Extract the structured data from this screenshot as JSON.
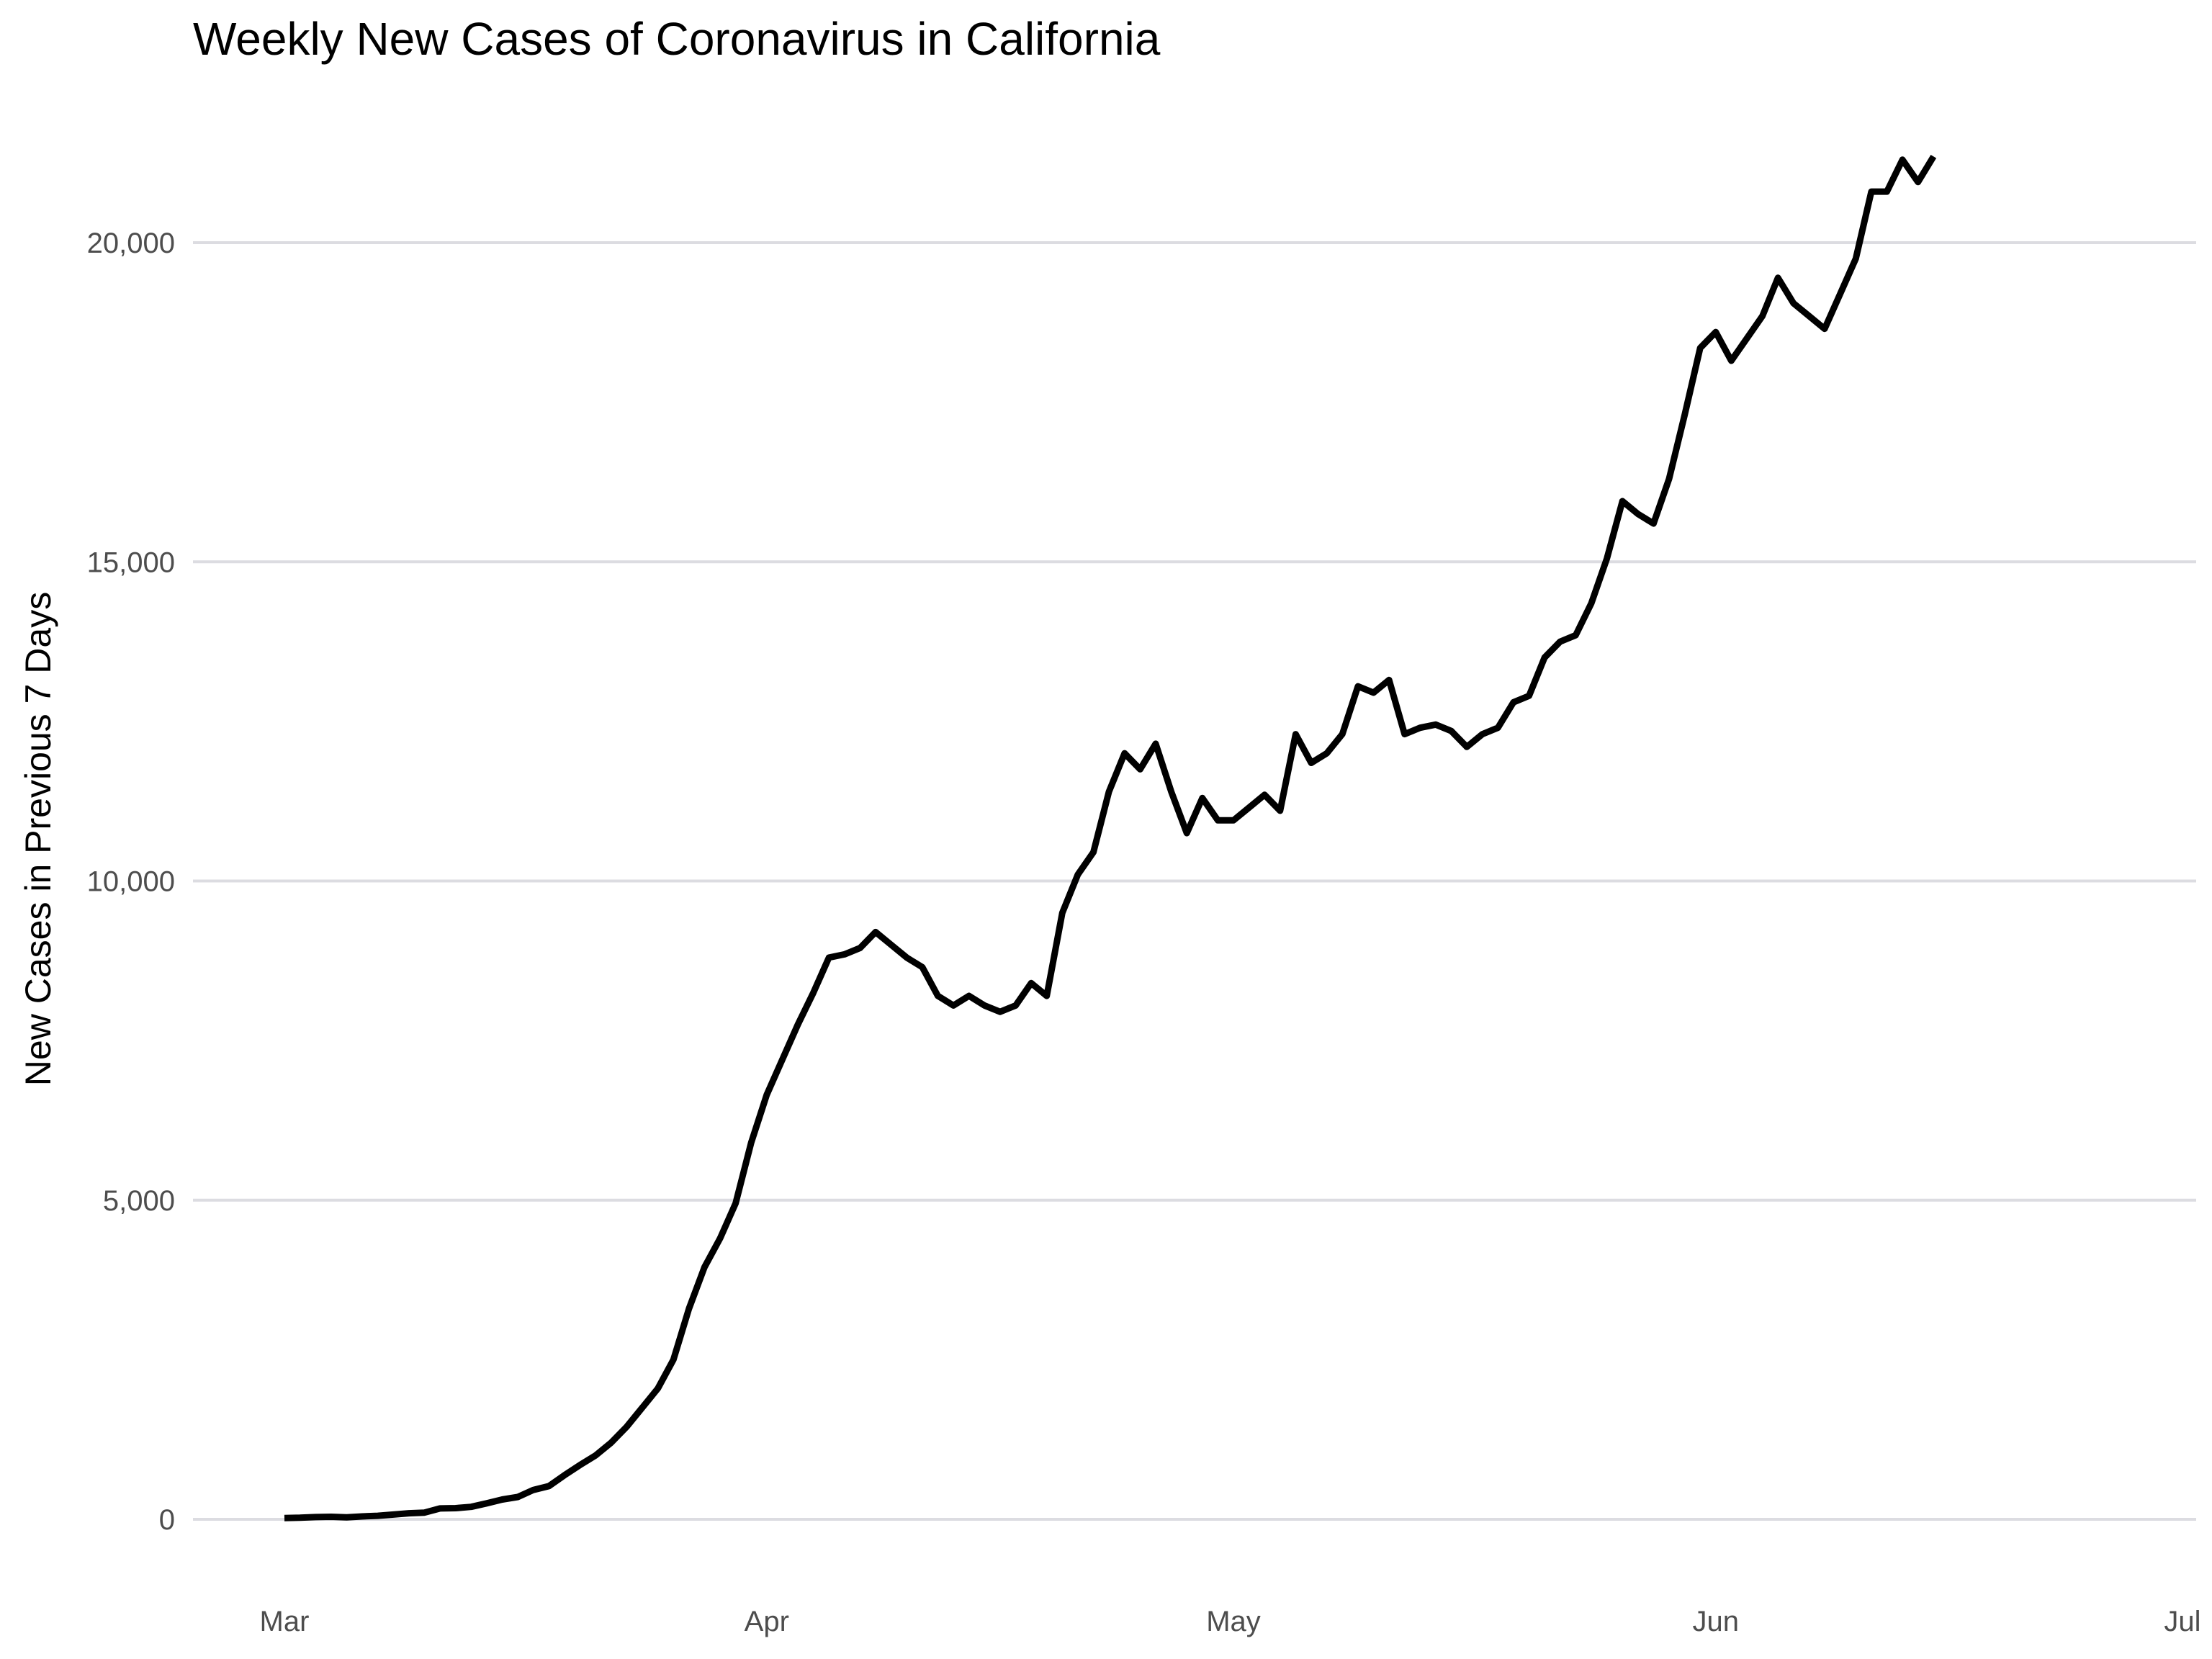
{
  "chart_data": {
    "type": "line",
    "title": "Weekly New Cases of Coronavirus in California",
    "xlabel": "",
    "ylabel": "New Cases in Previous 7 Days",
    "xlim": [
      "2020-03-01",
      "2020-07-01"
    ],
    "ylim": [
      0,
      20000
    ],
    "y_ticks": [
      0,
      5000,
      10000,
      15000,
      20000
    ],
    "y_tick_labels": [
      "0",
      "5,000",
      "10,000",
      "15,000",
      "20,000"
    ],
    "x_ticks": [
      "2020-03-01",
      "2020-04-01",
      "2020-05-01",
      "2020-06-01",
      "2020-07-01"
    ],
    "x_tick_labels": [
      "Mar",
      "Apr",
      "May",
      "Jun",
      "Jul"
    ],
    "grid": "horizontal",
    "line_color": "#000000",
    "grid_color": "#dcdce1",
    "series": [
      {
        "x": [
          "2020-03-01",
          "2020-03-02",
          "2020-03-03",
          "2020-03-04",
          "2020-03-05",
          "2020-03-06",
          "2020-03-07",
          "2020-03-08",
          "2020-03-09",
          "2020-03-10",
          "2020-03-11",
          "2020-03-12",
          "2020-03-13",
          "2020-03-14",
          "2020-03-15",
          "2020-03-16",
          "2020-03-17",
          "2020-03-18",
          "2020-03-19",
          "2020-03-20",
          "2020-03-21",
          "2020-03-22",
          "2020-03-23",
          "2020-03-24",
          "2020-03-25",
          "2020-03-26",
          "2020-03-27",
          "2020-03-28",
          "2020-03-29",
          "2020-03-30",
          "2020-03-31",
          "2020-04-01",
          "2020-04-02",
          "2020-04-03",
          "2020-04-04",
          "2020-04-05",
          "2020-04-06",
          "2020-04-07",
          "2020-04-08",
          "2020-04-09",
          "2020-04-10",
          "2020-04-11",
          "2020-04-12",
          "2020-04-13",
          "2020-04-14",
          "2020-04-15",
          "2020-04-16",
          "2020-04-17",
          "2020-04-18",
          "2020-04-19",
          "2020-04-20",
          "2020-04-21",
          "2020-04-22",
          "2020-04-23",
          "2020-04-24",
          "2020-04-25",
          "2020-04-26",
          "2020-04-27",
          "2020-04-28",
          "2020-04-29",
          "2020-04-30",
          "2020-05-01",
          "2020-05-02",
          "2020-05-03",
          "2020-05-04",
          "2020-05-05",
          "2020-05-06",
          "2020-05-07",
          "2020-05-08",
          "2020-05-09",
          "2020-05-10",
          "2020-05-11",
          "2020-05-12",
          "2020-05-13",
          "2020-05-14",
          "2020-05-15",
          "2020-05-16",
          "2020-05-17",
          "2020-05-18",
          "2020-05-19",
          "2020-05-20",
          "2020-05-21",
          "2020-05-22",
          "2020-05-23",
          "2020-05-24",
          "2020-05-25",
          "2020-05-26",
          "2020-05-27",
          "2020-05-28",
          "2020-05-29",
          "2020-05-30",
          "2020-05-31",
          "2020-06-01",
          "2020-06-02",
          "2020-06-03",
          "2020-06-04",
          "2020-06-05",
          "2020-06-06",
          "2020-06-07",
          "2020-06-08",
          "2020-06-09",
          "2020-06-10",
          "2020-06-11",
          "2020-06-12",
          "2020-06-13",
          "2020-06-14",
          "2020-06-15",
          "2020-06-16"
        ],
        "values": [
          20,
          25,
          35,
          40,
          30,
          45,
          55,
          75,
          95,
          105,
          170,
          175,
          195,
          250,
          310,
          350,
          460,
          520,
          690,
          850,
          1000,
          1200,
          1450,
          1750,
          2050,
          2500,
          3300,
          3950,
          4400,
          4950,
          5900,
          6650,
          7200,
          7750,
          8250,
          8800,
          8850,
          8950,
          9200,
          9000,
          8800,
          8650,
          8200,
          8050,
          8200,
          8050,
          7950,
          8050,
          8400,
          8200,
          9500,
          10100,
          10450,
          11400,
          12000,
          11750,
          12150,
          11400,
          10750,
          11300,
          10950,
          10950,
          11150,
          11350,
          11100,
          12300,
          11850,
          12000,
          12300,
          13050,
          12950,
          13150,
          12300,
          12400,
          12450,
          12350,
          12100,
          12300,
          12400,
          12800,
          12900,
          13500,
          13750,
          13850,
          14350,
          15050,
          15950,
          15750,
          15600,
          16300,
          17300,
          18350,
          18600,
          18150,
          18500,
          18850,
          19450,
          19050,
          18850,
          18650,
          19200,
          19750,
          20800,
          20800,
          21300,
          20950,
          21350,
          null
        ]
      }
    ]
  }
}
